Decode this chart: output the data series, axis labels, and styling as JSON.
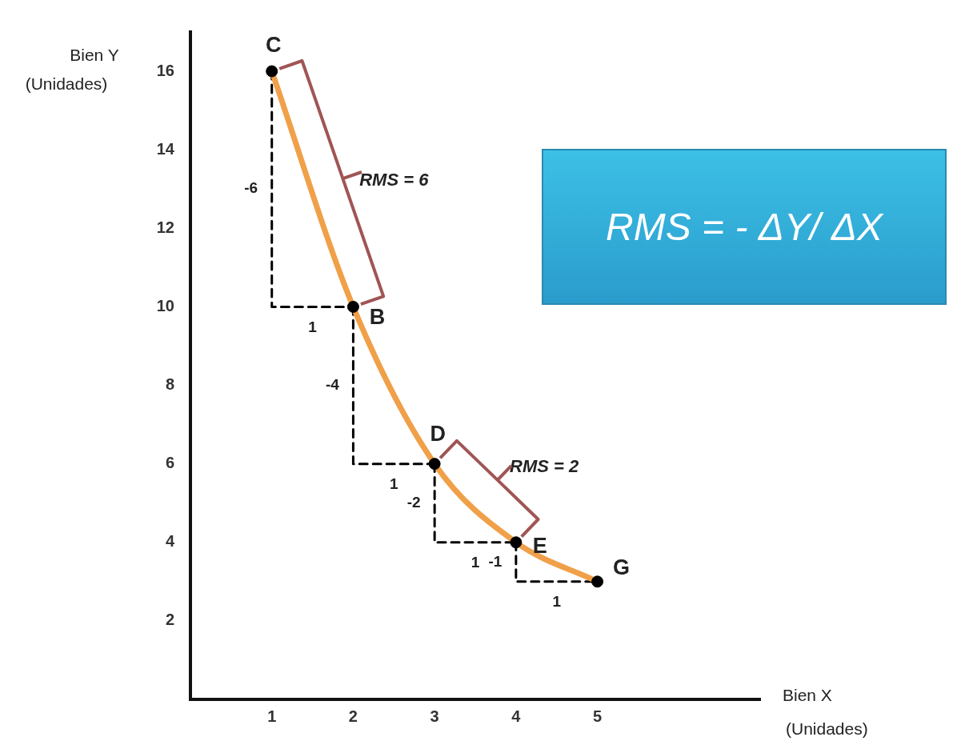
{
  "chart_data": {
    "type": "line",
    "xlabel": "Bien X (Unidades)",
    "ylabel": "Bien Y (Unidades)",
    "xlim": [
      0,
      7
    ],
    "xticks": [
      1,
      2,
      3,
      4,
      5
    ],
    "ylim": [
      0,
      17
    ],
    "yticks": [
      2,
      4,
      6,
      8,
      10,
      12,
      14,
      16
    ],
    "grid": false,
    "legend": false,
    "series": [
      {
        "color": "#f0a048",
        "x": [
          1,
          2,
          3,
          4,
          5
        ],
        "values": [
          16,
          10,
          6,
          4,
          3
        ],
        "marker": "none",
        "line_style": "solid"
      },
      {
        "type": "line",
        "color": "#000000",
        "x": [
          1,
          1,
          2
        ],
        "values": [
          16,
          10,
          10
        ],
        "marker": "none",
        "line_style": "dashed"
      },
      {
        "type": "line",
        "color": "#000000",
        "x": [
          2,
          2,
          3
        ],
        "values": [
          10,
          6,
          6
        ],
        "marker": "none",
        "line_style": "dashed"
      },
      {
        "type": "line",
        "color": "#000000",
        "x": [
          3,
          3,
          4
        ],
        "values": [
          6,
          4,
          4
        ],
        "marker": "none",
        "line_style": "dashed"
      },
      {
        "type": "line",
        "color": "#000000",
        "x": [
          4,
          4,
          5
        ],
        "values": [
          4,
          3,
          3
        ],
        "marker": "none",
        "line_style": "dashed"
      },
      {
        "type": "scatter",
        "color": "#000000",
        "x": [
          1,
          2,
          3,
          4,
          5
        ],
        "values": [
          16,
          10,
          6,
          4,
          3
        ],
        "marker": "circle"
      }
    ],
    "annotations": [
      "RMS = - ΔY/ ΔX",
      {
        "text": "RMS = 6",
        "x": 1.5,
        "y": 12.8
      },
      {
        "text": "RMS = 2",
        "x": 3.5,
        "y": 5
      },
      {
        "text": "C",
        "x": 1,
        "y": 16
      },
      {
        "text": "B",
        "x": 2,
        "y": 10
      },
      {
        "text": "D",
        "x": 3,
        "y": 6
      },
      {
        "text": "E",
        "x": 4,
        "y": 4
      },
      {
        "text": "G",
        "x": 5,
        "y": 3
      },
      {
        "text": "-6",
        "x": 1,
        "y": 13
      },
      {
        "text": "1",
        "x": 1.5,
        "y": 10
      },
      {
        "text": "-4",
        "x": 2,
        "y": 8
      },
      {
        "text": "1",
        "x": 2.5,
        "y": 6
      },
      {
        "text": "-2",
        "x": 3,
        "y": 5
      },
      {
        "text": "1",
        "x": 3.5,
        "y": 4
      },
      {
        "text": "-1",
        "x": 4,
        "y": 3.5
      },
      {
        "text": "1",
        "x": 4.5,
        "y": 3
      }
    ]
  }
}
